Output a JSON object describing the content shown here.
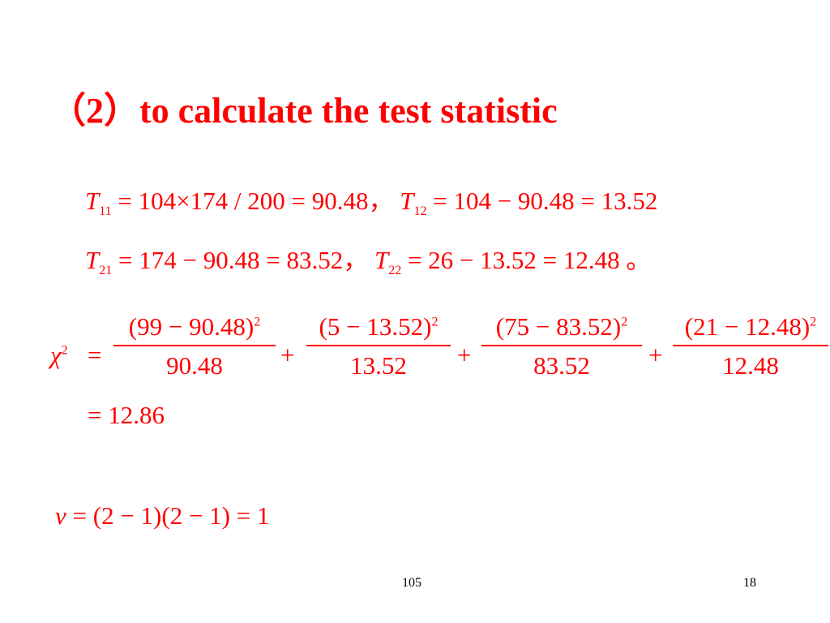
{
  "title": "（2）to calculate the test statistic",
  "expected_rows": [
    {
      "terms": [
        {
          "symbol": "T",
          "sub": "11",
          "expr": "= 104×174 / 200 = 90.48"
        },
        {
          "symbol": "T",
          "sub": "12",
          "expr": "= 104 − 90.48 = 13.52"
        }
      ],
      "separator": "，"
    },
    {
      "terms": [
        {
          "symbol": "T",
          "sub": "21",
          "expr": "= 174 − 90.48 = 83.52"
        },
        {
          "symbol": "T",
          "sub": "22",
          "expr": "= 26 − 13.52 = 12.48"
        }
      ],
      "separator": "，",
      "end": "。"
    }
  ],
  "chi_square": {
    "symbol": "χ",
    "sup": "2",
    "eq": "=",
    "plus": "+",
    "fractions": [
      {
        "numerator": "(99 − 90.48)",
        "power": "2",
        "denominator": "90.48"
      },
      {
        "numerator": "(5 − 13.52)",
        "power": "2",
        "denominator": "13.52"
      },
      {
        "numerator": "(75 − 83.52)",
        "power": "2",
        "denominator": "83.52"
      },
      {
        "numerator": "(21 − 12.48)",
        "power": "2",
        "denominator": "12.48"
      }
    ],
    "result": "= 12.86"
  },
  "degrees_of_freedom": {
    "symbol": "ν",
    "expr": "= (2 − 1)(2 − 1) = 1"
  },
  "footer": {
    "center": "105",
    "right": "18"
  }
}
